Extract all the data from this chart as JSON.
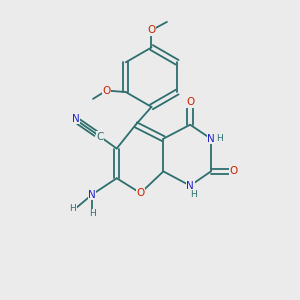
{
  "bg_color": "#ebebeb",
  "bond_color": "#2d6e6e",
  "atom_colors": {
    "N": "#2222cc",
    "O": "#cc2200",
    "C_label": "#2d6e6e",
    "H": "#2d6e6e",
    "NH2_N": "#2222cc",
    "NH2_H": "#2d6e6e"
  },
  "figsize": [
    3.0,
    3.0
  ],
  "dpi": 100
}
